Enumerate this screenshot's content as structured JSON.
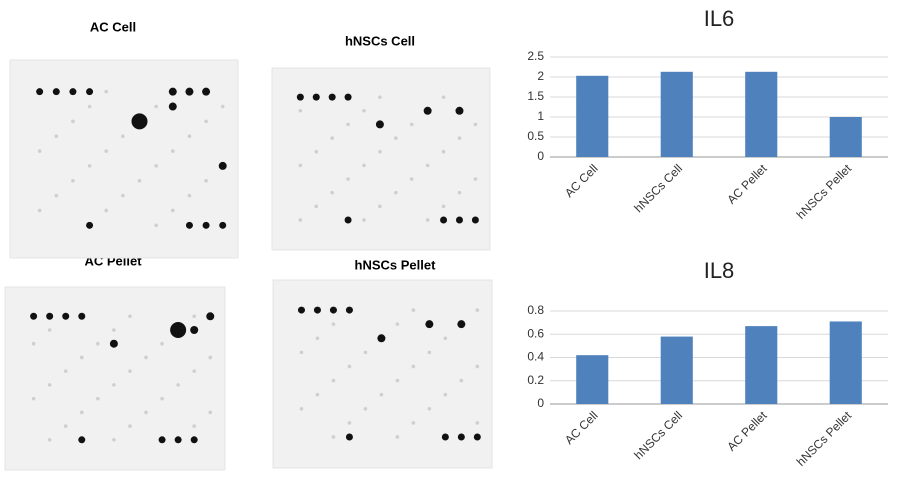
{
  "blots": [
    {
      "label": "AC Cell"
    },
    {
      "label": "hNSCs Cell"
    },
    {
      "label": "AC Pellet"
    },
    {
      "label": "hNSCs Pellet"
    }
  ],
  "chart_data": [
    {
      "type": "bar",
      "title": "IL6",
      "categories": [
        "AC Cell",
        "hNSCs Cell",
        "AC Pellet",
        "hNSCs Pellet"
      ],
      "values": [
        2.03,
        2.13,
        2.13,
        1.0
      ],
      "color": "#4f81bd",
      "ylim": [
        0,
        2.5
      ],
      "yticks": [
        0,
        0.5,
        1,
        1.5,
        2,
        2.5
      ],
      "grid": true
    },
    {
      "type": "bar",
      "title": "IL8",
      "categories": [
        "AC Cell",
        "hNSCs Cell",
        "AC Pellet",
        "hNSCs Pellet"
      ],
      "values": [
        0.42,
        0.58,
        0.67,
        0.71
      ],
      "color": "#4f81bd",
      "ylim": [
        0,
        0.8
      ],
      "yticks": [
        0,
        0.2,
        0.4,
        0.6,
        0.8
      ],
      "grid": true
    }
  ]
}
